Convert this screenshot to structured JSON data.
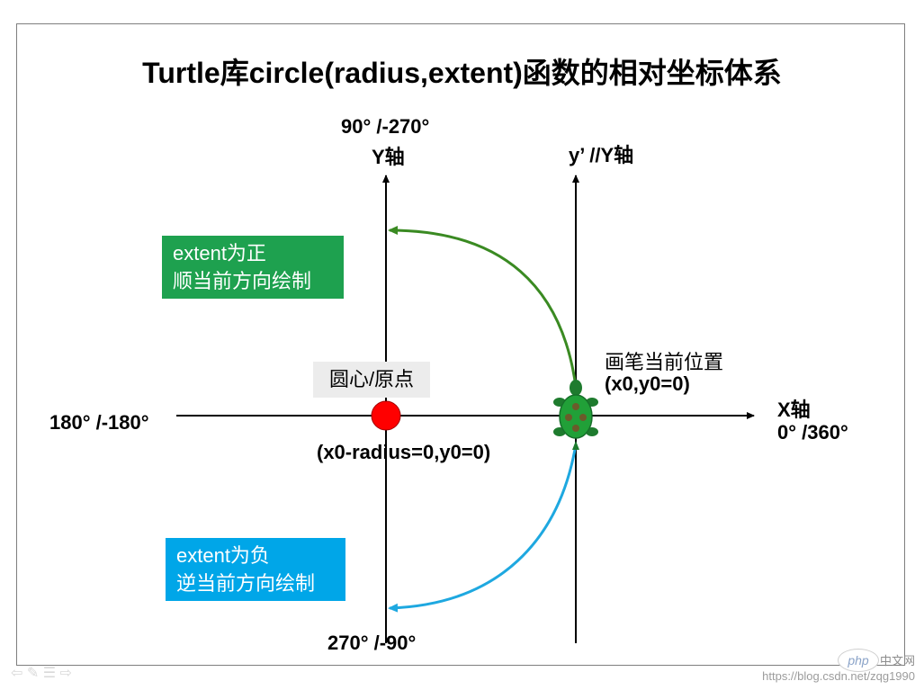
{
  "title": "Turtle库circle(radius,extent)函数的相对坐标体系",
  "y_axis": {
    "angle_label": "90°  /-270°",
    "name": "Y轴",
    "bottom_label": "270°  /-90°"
  },
  "x_axis": {
    "name": "X轴",
    "angle_label": "0°  /360°",
    "left_label": "180°   /-180°"
  },
  "yprime_axis": {
    "name": "y’ //Y轴"
  },
  "positive_box": {
    "line1": "extent为正",
    "line2": "顺当前方向绘制",
    "color": "#1ea14f"
  },
  "negative_box": {
    "line1": "extent为负",
    "line2": "逆当前方向绘制",
    "color": "#00a6e8"
  },
  "origin": {
    "label": "圆心/原点",
    "coords": "(x0-radius=0,y0=0)",
    "color": "#ff0000"
  },
  "pen": {
    "label": "画笔当前位置",
    "coords": "(x0,y0=0)"
  },
  "arc_colors": {
    "positive": "#3a8a22",
    "negative": "#1ea8e0"
  },
  "watermark": {
    "php": "php",
    "php_cn": "中文网",
    "url": "https://blog.csdn.net/zqg1990"
  }
}
